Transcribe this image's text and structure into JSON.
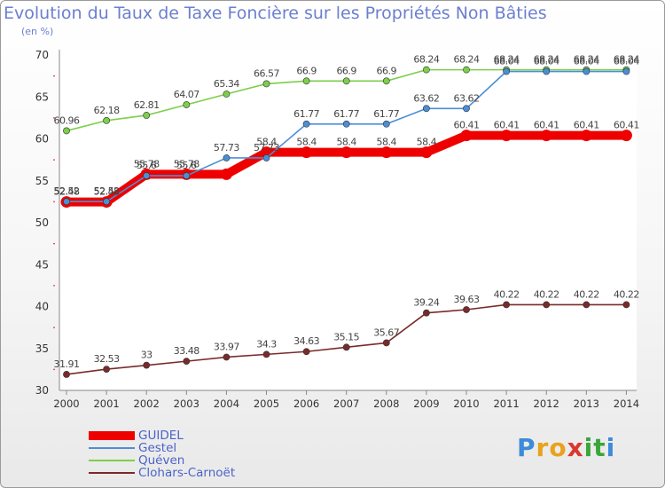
{
  "title": "Evolution du Taux de Taxe Foncière sur les Propriétés Non Bâties",
  "subtitle": "(en %)",
  "logo": {
    "letters": [
      "P",
      "r",
      "o",
      "x",
      "i",
      "t",
      "i"
    ],
    "colors": [
      "#3d8bd9",
      "#e8a21c",
      "#e8a21c",
      "#d8382f",
      "#3aa63a",
      "#3aa63a",
      "#3d8bd9"
    ]
  },
  "chart_data": {
    "type": "line",
    "x": [
      "2000",
      "2001",
      "2002",
      "2003",
      "2004",
      "2005",
      "2006",
      "2007",
      "2008",
      "2009",
      "2010",
      "2011",
      "2012",
      "2013",
      "2014"
    ],
    "ylim": [
      30,
      70
    ],
    "yticks": [
      "30",
      "35",
      "40",
      "45",
      "50",
      "55",
      "60",
      "65",
      "70"
    ],
    "grid": false,
    "legend": "bottom-left",
    "series": [
      {
        "name": "GUIDEL",
        "color": "#ee0000",
        "values": [
          52.48,
          52.48,
          55.78,
          55.78,
          55.78,
          58.4,
          58.4,
          58.4,
          58.4,
          58.4,
          60.41,
          60.41,
          60.41,
          60.41,
          60.41
        ],
        "labels": [
          "52.48",
          "52.48",
          "55.78",
          "55.78",
          "",
          "58.4",
          "58.4",
          "58.4",
          "58.4",
          "58.4",
          "60.41",
          "60.41",
          "60.41",
          "60.41",
          "60.41"
        ]
      },
      {
        "name": "Gestel",
        "color": "#4a8fd6",
        "values": [
          52.52,
          52.52,
          55.6,
          55.6,
          57.73,
          57.73,
          61.77,
          61.77,
          61.77,
          63.62,
          63.62,
          68.04,
          68.04,
          68.04,
          68.04
        ],
        "labels": [
          "52.52",
          "52.52",
          "55.6",
          "55.6",
          "57.73",
          "57.73",
          "61.77",
          "61.77",
          "61.77",
          "63.62",
          "63.62",
          "68.04",
          "68.04",
          "68.04",
          "68.04"
        ]
      },
      {
        "name": "Quéven",
        "color": "#7ccf4a",
        "values": [
          60.96,
          62.18,
          62.81,
          64.07,
          65.34,
          66.57,
          66.9,
          66.9,
          66.9,
          68.24,
          68.24,
          68.24,
          68.24,
          68.24,
          68.24
        ],
        "labels": [
          "60.96",
          "62.18",
          "62.81",
          "64.07",
          "65.34",
          "66.57",
          "66.9",
          "66.9",
          "66.9",
          "68.24",
          "68.24",
          "68.24",
          "68.24",
          "68.24",
          "68.24"
        ]
      },
      {
        "name": "Clohars-Carnoët",
        "color": "#7a2a2a",
        "values": [
          31.91,
          32.53,
          33,
          33.48,
          33.97,
          34.3,
          34.63,
          35.15,
          35.67,
          39.24,
          39.63,
          40.22,
          40.22,
          40.22,
          40.22
        ],
        "labels": [
          "31.91",
          "32.53",
          "33",
          "33.48",
          "33.97",
          "34.3",
          "34.63",
          "35.15",
          "35.67",
          "39.24",
          "39.63",
          "40.22",
          "40.22",
          "40.22",
          "40.22"
        ]
      }
    ]
  }
}
